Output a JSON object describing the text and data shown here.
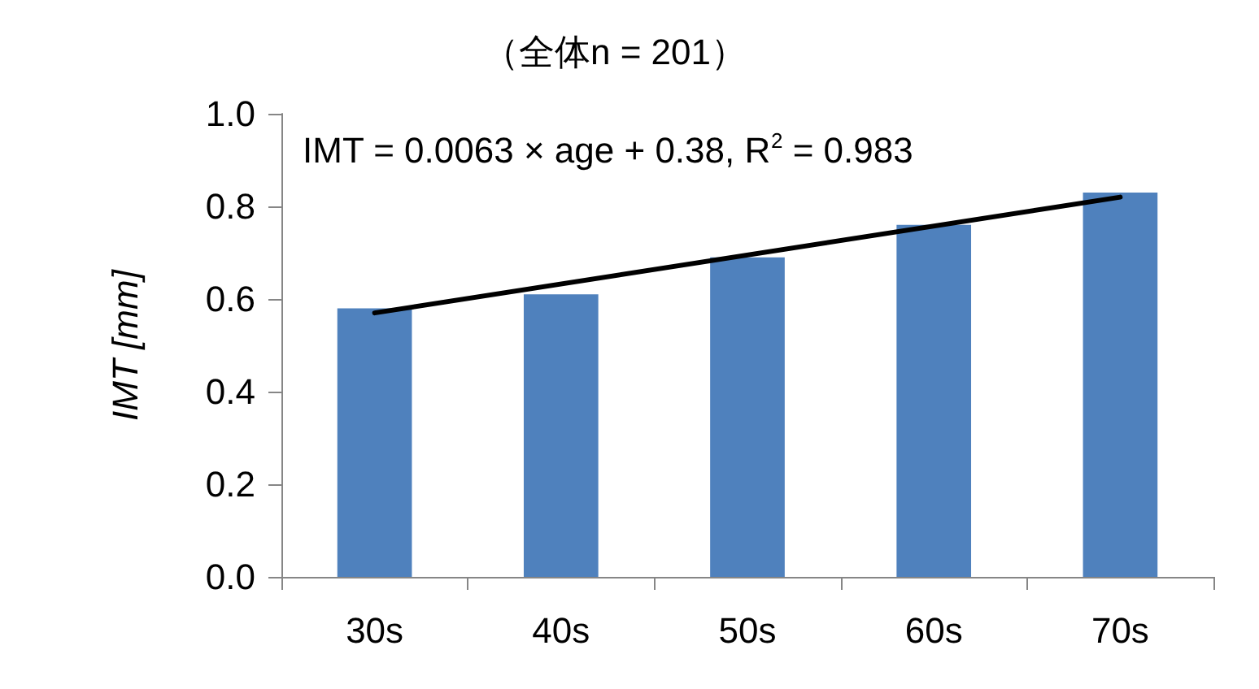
{
  "chart_data": {
    "type": "bar",
    "title": "（全体n = 201）",
    "ylabel": "IMT [mm]",
    "categories": [
      "30s",
      "40s",
      "50s",
      "60s",
      "70s"
    ],
    "series": [
      {
        "color": "#4f81bd",
        "values": [
          0.58,
          0.61,
          0.69,
          0.76,
          0.83
        ]
      },
      {
        "type": "line",
        "color": "#000000",
        "x": [
          "30s",
          "70s"
        ],
        "values": [
          0.57,
          0.82
        ]
      }
    ],
    "annotations": [
      "IMT = 0.0063 × age + 0.38, R$^{2}$ = 0.983"
    ],
    "ylim": [
      0,
      1
    ],
    "yticks": [
      {
        "value": 0,
        "label": "0.0"
      },
      0.2,
      0.4,
      0.6,
      0.8,
      {
        "value": 1,
        "label": "1.0"
      }
    ],
    "grid": false
  }
}
